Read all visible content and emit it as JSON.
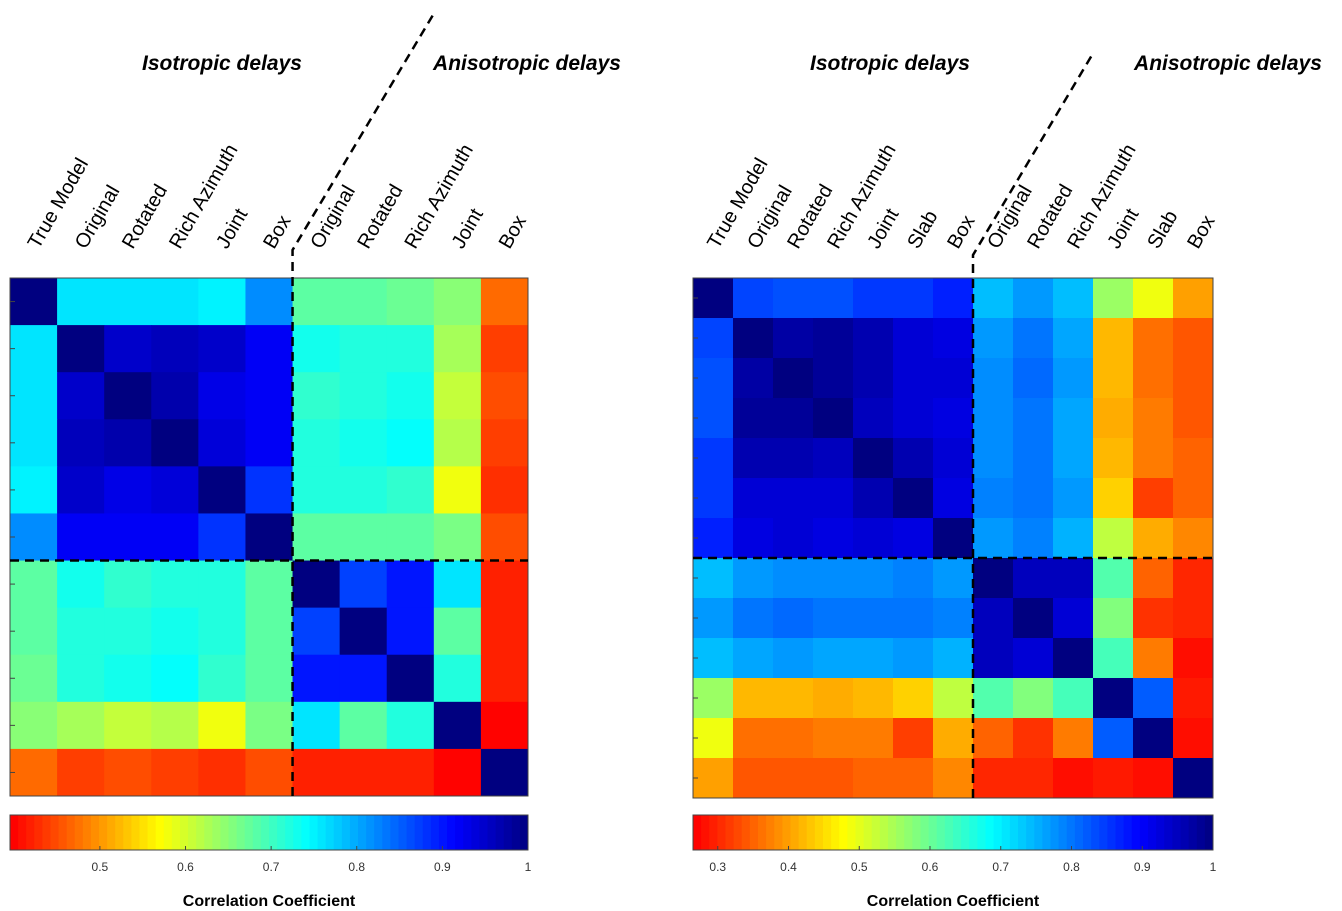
{
  "chart_data": [
    {
      "type": "heatmap",
      "colormap": "jet_r",
      "groups": [
        {
          "name": "Isotropic delays",
          "categories": [
            "True Model",
            "Original",
            "Rotated",
            "Rich Azimuth",
            "Joint",
            "Box"
          ]
        },
        {
          "name": "Anisotropic delays",
          "categories": [
            "Original",
            "Rotated",
            "Rich Azimuth",
            "Joint",
            "Box"
          ]
        }
      ],
      "values": [
        [
          1.0,
          0.76,
          0.76,
          0.76,
          0.75,
          0.82,
          0.68,
          0.68,
          0.67,
          0.65,
          0.47
        ],
        [
          0.76,
          1.0,
          0.95,
          0.96,
          0.95,
          0.92,
          0.73,
          0.72,
          0.72,
          0.63,
          0.44
        ],
        [
          0.76,
          0.95,
          1.0,
          0.97,
          0.93,
          0.92,
          0.71,
          0.72,
          0.73,
          0.61,
          0.45
        ],
        [
          0.76,
          0.96,
          0.97,
          1.0,
          0.94,
          0.92,
          0.72,
          0.73,
          0.74,
          0.62,
          0.44
        ],
        [
          0.75,
          0.95,
          0.93,
          0.94,
          1.0,
          0.88,
          0.72,
          0.72,
          0.71,
          0.58,
          0.43
        ],
        [
          0.82,
          0.92,
          0.92,
          0.92,
          0.88,
          1.0,
          0.68,
          0.68,
          0.68,
          0.66,
          0.45
        ],
        [
          0.68,
          0.73,
          0.71,
          0.72,
          0.72,
          0.68,
          1.0,
          0.87,
          0.9,
          0.76,
          0.42
        ],
        [
          0.68,
          0.72,
          0.72,
          0.73,
          0.72,
          0.68,
          0.87,
          1.0,
          0.9,
          0.68,
          0.42
        ],
        [
          0.67,
          0.72,
          0.73,
          0.74,
          0.71,
          0.68,
          0.9,
          0.9,
          1.0,
          0.72,
          0.42
        ],
        [
          0.65,
          0.63,
          0.61,
          0.62,
          0.58,
          0.66,
          0.76,
          0.68,
          0.72,
          1.0,
          0.4
        ],
        [
          0.47,
          0.44,
          0.45,
          0.44,
          0.43,
          0.45,
          0.42,
          0.42,
          0.42,
          0.4,
          1.0
        ]
      ],
      "zlim": [
        0.395,
        1
      ],
      "zticks": [
        0.5,
        0.6,
        0.7,
        0.8,
        0.9,
        1
      ],
      "colorbar_label": "Correlation Coefficient"
    },
    {
      "type": "heatmap",
      "colormap": "jet_r",
      "groups": [
        {
          "name": "Isotropic delays",
          "categories": [
            "True Model",
            "Original",
            "Rotated",
            "Rich Azimuth",
            "Joint",
            "Slab",
            "Box"
          ]
        },
        {
          "name": "Anisotropic delays",
          "categories": [
            "Original",
            "Rotated",
            "Rich Azimuth",
            "Joint",
            "Slab",
            "Box"
          ]
        }
      ],
      "values": [
        [
          1.0,
          0.84,
          0.83,
          0.83,
          0.85,
          0.85,
          0.87,
          0.74,
          0.77,
          0.74,
          0.56,
          0.49,
          0.4
        ],
        [
          0.84,
          1.0,
          0.97,
          0.98,
          0.96,
          0.93,
          0.92,
          0.77,
          0.8,
          0.76,
          0.42,
          0.36,
          0.34
        ],
        [
          0.83,
          0.97,
          1.0,
          0.98,
          0.96,
          0.93,
          0.93,
          0.78,
          0.81,
          0.77,
          0.42,
          0.36,
          0.34
        ],
        [
          0.83,
          0.98,
          0.98,
          1.0,
          0.95,
          0.93,
          0.92,
          0.78,
          0.8,
          0.76,
          0.41,
          0.37,
          0.34
        ],
        [
          0.85,
          0.96,
          0.96,
          0.95,
          1.0,
          0.96,
          0.93,
          0.78,
          0.8,
          0.76,
          0.42,
          0.37,
          0.35
        ],
        [
          0.85,
          0.93,
          0.93,
          0.93,
          0.96,
          1.0,
          0.92,
          0.79,
          0.8,
          0.77,
          0.44,
          0.32,
          0.35
        ],
        [
          0.87,
          0.92,
          0.93,
          0.92,
          0.93,
          0.92,
          1.0,
          0.77,
          0.79,
          0.75,
          0.53,
          0.41,
          0.38
        ],
        [
          0.74,
          0.77,
          0.78,
          0.78,
          0.78,
          0.79,
          0.77,
          1.0,
          0.95,
          0.95,
          0.62,
          0.35,
          0.3
        ],
        [
          0.77,
          0.8,
          0.81,
          0.8,
          0.8,
          0.8,
          0.79,
          0.95,
          1.0,
          0.93,
          0.58,
          0.31,
          0.3
        ],
        [
          0.74,
          0.76,
          0.77,
          0.76,
          0.76,
          0.77,
          0.75,
          0.95,
          0.93,
          1.0,
          0.63,
          0.37,
          0.28
        ],
        [
          0.56,
          0.42,
          0.42,
          0.41,
          0.42,
          0.44,
          0.53,
          0.62,
          0.58,
          0.63,
          1.0,
          0.82,
          0.29
        ],
        [
          0.49,
          0.36,
          0.36,
          0.37,
          0.37,
          0.32,
          0.41,
          0.35,
          0.31,
          0.37,
          0.82,
          1.0,
          0.28
        ],
        [
          0.4,
          0.34,
          0.34,
          0.34,
          0.35,
          0.35,
          0.38,
          0.3,
          0.3,
          0.28,
          0.29,
          0.28,
          1.0
        ]
      ],
      "zlim": [
        0.265,
        1
      ],
      "zticks": [
        0.3,
        0.4,
        0.5,
        0.6,
        0.7,
        0.8,
        0.9,
        1
      ],
      "colorbar_label": "Correlation Coefficient"
    }
  ]
}
